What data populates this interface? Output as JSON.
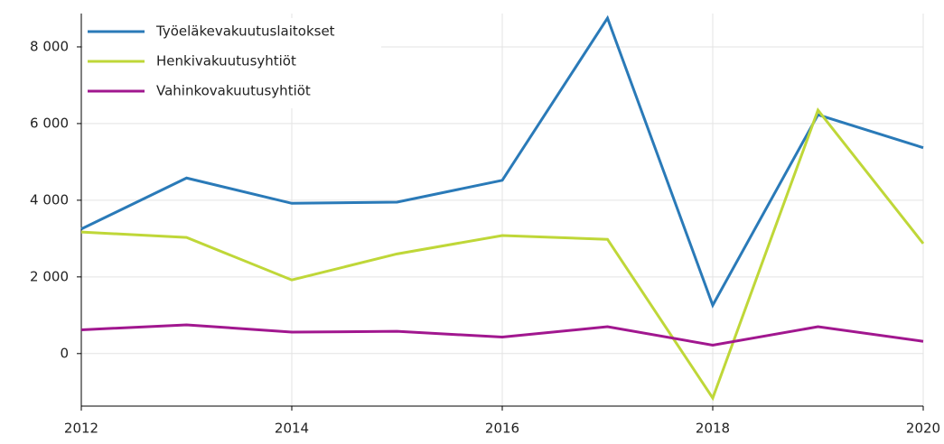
{
  "chart_data": {
    "type": "line",
    "x": [
      2012,
      2013,
      2014,
      2015,
      2016,
      2017,
      2018,
      2019,
      2020
    ],
    "series": [
      {
        "name": "Työeläkevakuutuslaitokset",
        "color": "#2a7ab8",
        "values": [
          3250,
          4580,
          3920,
          3950,
          4520,
          8750,
          1260,
          6230,
          5370
        ]
      },
      {
        "name": "Henkivakuutusyhtiöt",
        "color": "#bfd738",
        "values": [
          3170,
          3030,
          1920,
          2600,
          3080,
          2980,
          -1160,
          6350,
          2870
        ]
      },
      {
        "name": "Vahinkovakuutusyhtiöt",
        "color": "#a1178f",
        "values": [
          620,
          750,
          560,
          580,
          430,
          700,
          220,
          700,
          320
        ]
      }
    ],
    "xlim": [
      2012,
      2020
    ],
    "xticks": [
      2012,
      2014,
      2016,
      2018,
      2020
    ],
    "ylim": [
      -1370,
      8870
    ],
    "yticks": [
      0,
      {
        "value": 2000,
        "label": "2 000"
      },
      {
        "value": 4000,
        "label": "4 000"
      },
      {
        "value": 6000,
        "label": "6 000"
      },
      {
        "value": 8000,
        "label": "8 000"
      }
    ],
    "grid": true,
    "legend": "top-left"
  }
}
